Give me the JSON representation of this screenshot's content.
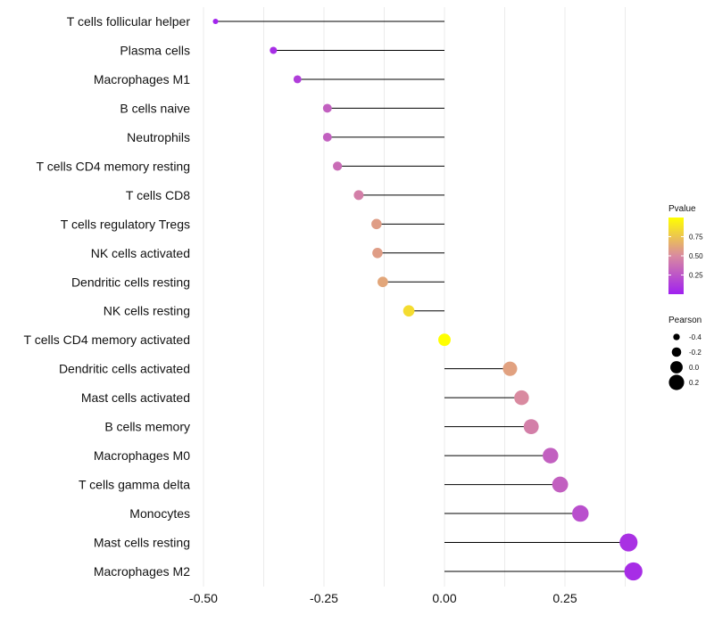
{
  "chart_data": {
    "type": "lollipop",
    "title": "",
    "xlabel": "",
    "ylabel": "",
    "xlim": [
      -0.5,
      0.4
    ],
    "xticks": [
      -0.5,
      -0.25,
      0.0,
      0.25
    ],
    "xtick_labels": [
      "-0.50",
      "-0.25",
      "0.00",
      "0.25"
    ],
    "grid": true,
    "categories": [
      "T cells follicular helper",
      "Plasma cells",
      "Macrophages M1",
      "B cells naive",
      "Neutrophils",
      "T cells CD4 memory resting",
      "T cells CD8",
      "T cells regulatory  Tregs ",
      "NK cells activated",
      "Dendritic cells resting",
      "NK cells resting",
      "T cells CD4 memory activated",
      "Dendritic cells activated",
      "Mast cells activated",
      "B cells memory",
      "Macrophages M0",
      "T cells gamma delta",
      "Monocytes",
      "Mast cells resting",
      "Macrophages M2"
    ],
    "pearson": [
      -0.475,
      -0.355,
      -0.305,
      -0.243,
      -0.243,
      -0.222,
      -0.178,
      -0.141,
      -0.139,
      -0.128,
      -0.074,
      0.0,
      0.136,
      0.16,
      0.18,
      0.22,
      0.24,
      0.282,
      0.382,
      0.392
    ],
    "pvalue": [
      0.02,
      0.06,
      0.14,
      0.3,
      0.3,
      0.36,
      0.45,
      0.58,
      0.58,
      0.62,
      0.85,
      1.0,
      0.6,
      0.5,
      0.45,
      0.3,
      0.3,
      0.22,
      0.08,
      0.06
    ],
    "size_legend": {
      "title": "Pearson",
      "labels": [
        "-0.4",
        "-0.2",
        "0.0",
        "0.2"
      ],
      "values": [
        -0.4,
        -0.2,
        0.0,
        0.2
      ]
    },
    "color_legend": {
      "title": "Pvalue",
      "labels": [
        "0.75",
        "0.50",
        "0.25"
      ],
      "values": [
        0.75,
        0.5,
        0.25
      ],
      "range": [
        0.0,
        1.0
      ],
      "low_color": "#a020f0",
      "mid_color": "#d98aa0",
      "high_color": "#ffff00"
    },
    "colors": {
      "stem": "#000000",
      "grid": "#ebebeb"
    }
  }
}
